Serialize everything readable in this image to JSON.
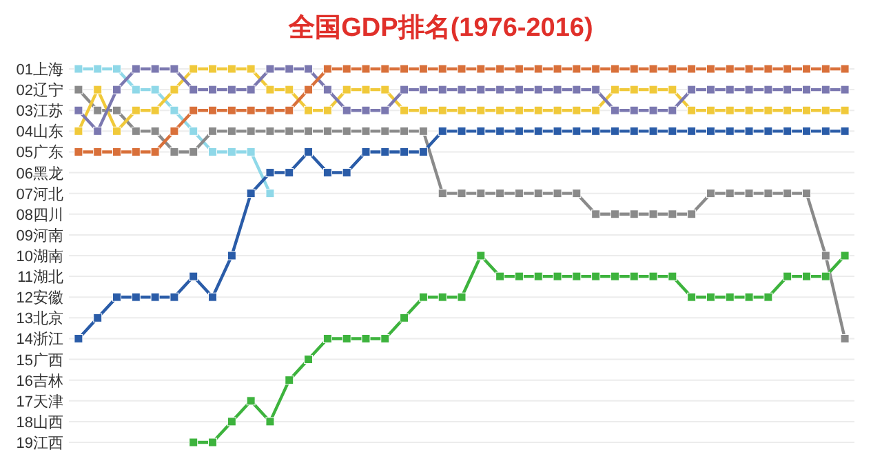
{
  "chart_data": {
    "type": "line",
    "title": "全国GDP排名(1976-2016)",
    "tick_labels": "y",
    "grid": "y",
    "marker": "square",
    "ylim": [
      19,
      1
    ],
    "categories": [
      null,
      null,
      null,
      null,
      null,
      null,
      null,
      null,
      null,
      null,
      null,
      null,
      null,
      null,
      null,
      null,
      null,
      null,
      null,
      null,
      null,
      null,
      null,
      null,
      null,
      null,
      null,
      null,
      null,
      null,
      null,
      null,
      null,
      null,
      null,
      null,
      null,
      null,
      null,
      null,
      null
    ],
    "yticks": [
      {
        "value": 1,
        "label": "01上海"
      },
      {
        "value": 2,
        "label": "02辽宁"
      },
      {
        "value": 3,
        "label": "03江苏"
      },
      {
        "value": 4,
        "label": "04山东"
      },
      {
        "value": 5,
        "label": "05广东"
      },
      {
        "value": 6,
        "label": "06黑龙"
      },
      {
        "value": 7,
        "label": "07河北"
      },
      {
        "value": 8,
        "label": "08四川"
      },
      {
        "value": 9,
        "label": "09河南"
      },
      {
        "value": 10,
        "label": "10湖南"
      },
      {
        "value": 11,
        "label": "11湖北"
      },
      {
        "value": 12,
        "label": "12安徽"
      },
      {
        "value": 13,
        "label": "13北京"
      },
      {
        "value": 14,
        "label": "14浙江"
      },
      {
        "value": 15,
        "label": "15广西"
      },
      {
        "value": 16,
        "label": "16吉林"
      },
      {
        "value": 17,
        "label": "17天津"
      },
      {
        "value": 18,
        "label": "18山西"
      },
      {
        "value": 19,
        "label": "19江西"
      }
    ],
    "series": [
      {
        "color": "#8fd8e8",
        "values": [
          1,
          1,
          1,
          2,
          2,
          3,
          4,
          5,
          5,
          5,
          7,
          null,
          null,
          null,
          null,
          null,
          null,
          null,
          null,
          null,
          null,
          null,
          null,
          null,
          null,
          null,
          null,
          null,
          null,
          null,
          null,
          null,
          null,
          null,
          null,
          null,
          null,
          null,
          null,
          null,
          null
        ]
      },
      {
        "color": "#8a8a8a",
        "values": [
          2,
          3,
          3,
          4,
          4,
          5,
          5,
          4,
          4,
          4,
          4,
          4,
          4,
          4,
          4,
          4,
          4,
          4,
          4,
          7,
          7,
          7,
          7,
          7,
          7,
          7,
          7,
          8,
          8,
          8,
          8,
          8,
          8,
          7,
          7,
          7,
          7,
          7,
          7,
          10,
          14
        ]
      },
      {
        "color": "#f0c93a",
        "values": [
          4,
          2,
          4,
          3,
          3,
          2,
          1,
          1,
          1,
          1,
          2,
          2,
          3,
          3,
          2,
          2,
          2,
          3,
          3,
          3,
          3,
          3,
          3,
          3,
          3,
          3,
          3,
          3,
          2,
          2,
          2,
          2,
          3,
          3,
          3,
          3,
          3,
          3,
          3,
          3,
          3
        ]
      },
      {
        "color": "#7b78b0",
        "values": [
          3,
          4,
          2,
          1,
          1,
          1,
          2,
          2,
          2,
          2,
          1,
          1,
          1,
          2,
          3,
          3,
          3,
          2,
          2,
          2,
          2,
          2,
          2,
          2,
          2,
          2,
          2,
          2,
          3,
          3,
          3,
          3,
          2,
          2,
          2,
          2,
          2,
          2,
          2,
          2,
          2
        ]
      },
      {
        "color": "#2a5ca8",
        "values": [
          14,
          13,
          12,
          12,
          12,
          12,
          11,
          12,
          10,
          7,
          6,
          6,
          5,
          6,
          6,
          5,
          5,
          5,
          5,
          4,
          4,
          4,
          4,
          4,
          4,
          4,
          4,
          4,
          4,
          4,
          4,
          4,
          4,
          4,
          4,
          4,
          4,
          4,
          4,
          4,
          4
        ]
      },
      {
        "color": "#3db33d",
        "values": [
          null,
          null,
          null,
          null,
          null,
          null,
          19,
          19,
          18,
          17,
          18,
          16,
          15,
          14,
          14,
          14,
          14,
          13,
          12,
          12,
          12,
          10,
          11,
          11,
          11,
          11,
          11,
          11,
          11,
          11,
          11,
          11,
          12,
          12,
          12,
          12,
          12,
          11,
          11,
          11,
          10
        ]
      },
      {
        "color": "#d9703a",
        "values": [
          5,
          5,
          5,
          5,
          5,
          4,
          3,
          3,
          3,
          3,
          3,
          3,
          2,
          1,
          1,
          1,
          1,
          1,
          1,
          1,
          1,
          1,
          1,
          1,
          1,
          1,
          1,
          1,
          1,
          1,
          1,
          1,
          1,
          1,
          1,
          1,
          1,
          1,
          1,
          1,
          1
        ]
      }
    ]
  }
}
